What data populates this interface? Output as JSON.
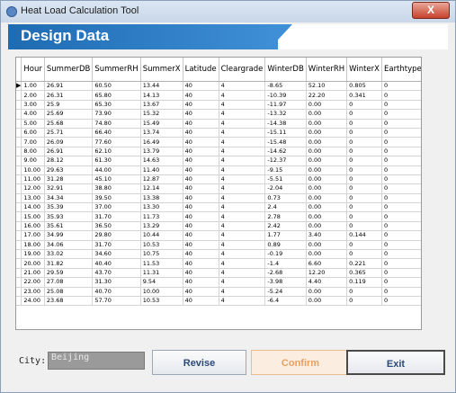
{
  "window": {
    "title": "Heat Load Calculation Tool",
    "close_glyph": "X"
  },
  "banner": {
    "heading": "Design Data"
  },
  "table": {
    "columns": [
      "Hour",
      "SummerDB",
      "SummerRH",
      "SummerX",
      "Latitude",
      "Cleargrade",
      "WinterDB",
      "WinterRH",
      "WinterX",
      "Earthtype"
    ],
    "rows": [
      [
        "1.00",
        "26.91",
        "60.50",
        "13.44",
        "40",
        "4",
        "-8.65",
        "52.10",
        "0.805",
        "0"
      ],
      [
        "2.00",
        "26.31",
        "65.80",
        "14.13",
        "40",
        "4",
        "-10.39",
        "22.20",
        "0.341",
        "0"
      ],
      [
        "3.00",
        "25.9",
        "65.30",
        "13.67",
        "40",
        "4",
        "-11.97",
        "0.00",
        "0",
        "0"
      ],
      [
        "4.00",
        "25.69",
        "73.90",
        "15.32",
        "40",
        "4",
        "-13.32",
        "0.00",
        "0",
        "0"
      ],
      [
        "5.00",
        "25.68",
        "74.80",
        "15.49",
        "40",
        "4",
        "-14.38",
        "0.00",
        "0",
        "0"
      ],
      [
        "6.00",
        "25.71",
        "66.40",
        "13.74",
        "40",
        "4",
        "-15.11",
        "0.00",
        "0",
        "0"
      ],
      [
        "7.00",
        "26.09",
        "77.60",
        "16.49",
        "40",
        "4",
        "-15.48",
        "0.00",
        "0",
        "0"
      ],
      [
        "8.00",
        "26.91",
        "62.10",
        "13.79",
        "40",
        "4",
        "-14.62",
        "0.00",
        "0",
        "0"
      ],
      [
        "9.00",
        "28.12",
        "61.30",
        "14.63",
        "40",
        "4",
        "-12.37",
        "0.00",
        "0",
        "0"
      ],
      [
        "10.00",
        "29.63",
        "44.00",
        "11.40",
        "40",
        "4",
        "-9.15",
        "0.00",
        "0",
        "0"
      ],
      [
        "11.00",
        "31.28",
        "45.10",
        "12.87",
        "40",
        "4",
        "-5.51",
        "0.00",
        "0",
        "0"
      ],
      [
        "12.00",
        "32.91",
        "38.80",
        "12.14",
        "40",
        "4",
        "-2.04",
        "0.00",
        "0",
        "0"
      ],
      [
        "13.00",
        "34.34",
        "39.50",
        "13.38",
        "40",
        "4",
        "0.73",
        "0.00",
        "0",
        "0"
      ],
      [
        "14.00",
        "35.39",
        "37.00",
        "13.30",
        "40",
        "4",
        "2.4",
        "0.00",
        "0",
        "0"
      ],
      [
        "15.00",
        "35.93",
        "31.70",
        "11.73",
        "40",
        "4",
        "2.78",
        "0.00",
        "0",
        "0"
      ],
      [
        "16.00",
        "35.61",
        "36.50",
        "13.29",
        "40",
        "4",
        "2.42",
        "0.00",
        "0",
        "0"
      ],
      [
        "17.00",
        "34.99",
        "29.80",
        "10.44",
        "40",
        "4",
        "1.77",
        "3.40",
        "0.144",
        "0"
      ],
      [
        "18.00",
        "34.06",
        "31.70",
        "10.53",
        "40",
        "4",
        "0.89",
        "0.00",
        "0",
        "0"
      ],
      [
        "19.00",
        "33.02",
        "34.60",
        "10.75",
        "40",
        "4",
        "-0.19",
        "0.00",
        "0",
        "0"
      ],
      [
        "20.00",
        "31.82",
        "40.40",
        "11.53",
        "40",
        "4",
        "-1.4",
        "6.60",
        "0.221",
        "0"
      ],
      [
        "21.00",
        "29.59",
        "43.70",
        "11.31",
        "40",
        "4",
        "-2.68",
        "12.20",
        "0.365",
        "0"
      ],
      [
        "22.00",
        "27.08",
        "31.30",
        "9.54",
        "40",
        "4",
        "-3.98",
        "4.40",
        "0.119",
        "0"
      ],
      [
        "23.00",
        "25.08",
        "40.70",
        "10.00",
        "40",
        "4",
        "-5.24",
        "0.00",
        "0",
        "0"
      ],
      [
        "24.00",
        "23.68",
        "57.70",
        "10.53",
        "40",
        "4",
        "-6.4",
        "0.00",
        "0",
        "0"
      ]
    ],
    "row_selector_glyph": "▶"
  },
  "bottom": {
    "city_label": "City:",
    "city_value": "Beijing",
    "revise_label": "Revise",
    "confirm_label": "Confirm",
    "exit_label": "Exit"
  }
}
